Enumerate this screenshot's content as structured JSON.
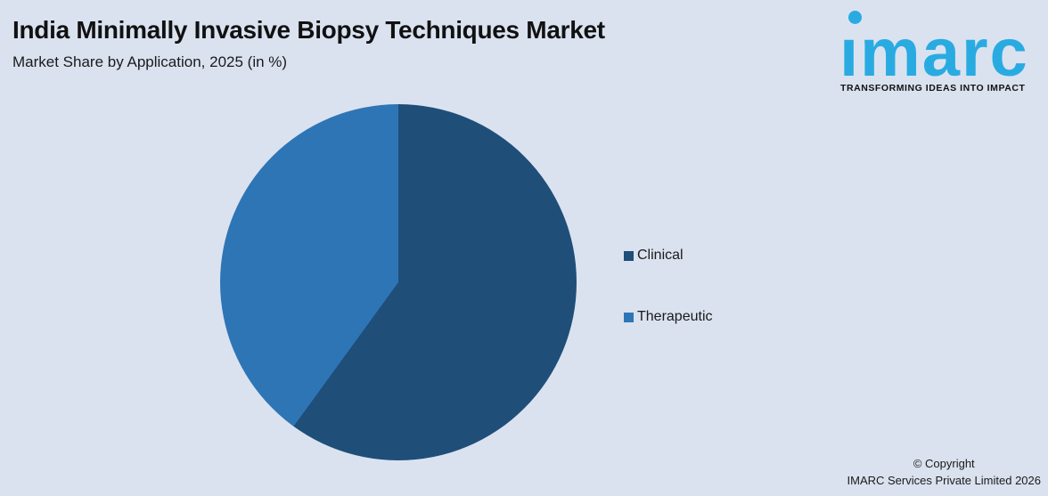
{
  "background_color": "#dae2f0",
  "header": {
    "title": "India Minimally Invasive Biopsy Techniques Market",
    "subtitle": "Market Share by Application, 2025 (in %)"
  },
  "logo": {
    "brand": "imarc",
    "brand_display": "ımarc",
    "tagline": "TRANSFORMING IDEAS INTO IMPACT",
    "color": "#29abe2"
  },
  "chart_data": {
    "type": "pie",
    "title": "India Minimally Invasive Biopsy Techniques Market",
    "subtitle": "Market Share by Application, 2025 (in %)",
    "categories": [
      "Clinical",
      "Therapeutic"
    ],
    "values": [
      60,
      40
    ],
    "unit": "%",
    "colors": [
      "#1f4e79",
      "#2e75b6"
    ],
    "start_angle_deg": 0,
    "direction": "clockwise",
    "legend_position": "right",
    "data_labels": false
  },
  "legend": {
    "items": [
      {
        "label": "Clinical",
        "color": "#1f4e79"
      },
      {
        "label": "Therapeutic",
        "color": "#2e75b6"
      }
    ]
  },
  "footer": {
    "line1": "© Copyright",
    "line2": "IMARC Services Private Limited 2026"
  }
}
